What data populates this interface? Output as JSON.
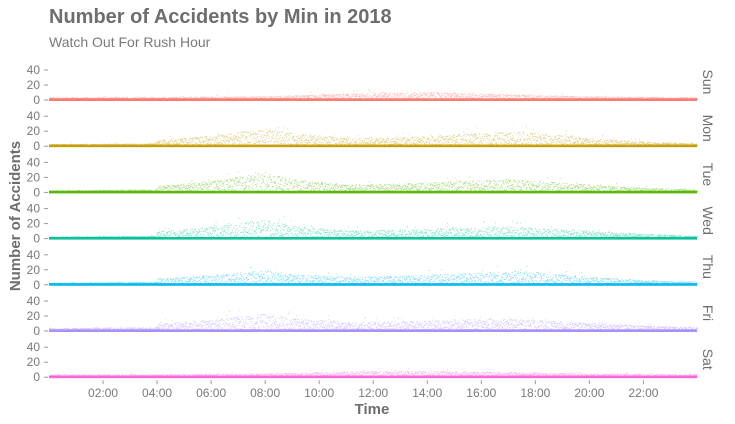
{
  "title": "Number of Accidents by Min in 2018",
  "subtitle": "Watch Out For Rush Hour",
  "chart_data": {
    "type": "scatter",
    "xlabel": "Time",
    "ylabel": "Number of Accidents",
    "xlim": [
      0,
      1439
    ],
    "ylim": [
      0,
      48
    ],
    "x_ticks": [
      {
        "minute": 120,
        "label": "02:00"
      },
      {
        "minute": 240,
        "label": "04:00"
      },
      {
        "minute": 360,
        "label": "06:00"
      },
      {
        "minute": 480,
        "label": "08:00"
      },
      {
        "minute": 600,
        "label": "10:00"
      },
      {
        "minute": 720,
        "label": "12:00"
      },
      {
        "minute": 840,
        "label": "14:00"
      },
      {
        "minute": 960,
        "label": "16:00"
      },
      {
        "minute": 1080,
        "label": "18:00"
      },
      {
        "minute": 1200,
        "label": "20:00"
      },
      {
        "minute": 1320,
        "label": "22:00"
      }
    ],
    "y_ticks": [
      0,
      20,
      40
    ],
    "grid": false,
    "legend": "none",
    "panels": [
      {
        "name": "Sun",
        "color": "#F8766D",
        "profile": [
          [
            0,
            3
          ],
          [
            240,
            3
          ],
          [
            480,
            4
          ],
          [
            720,
            8
          ],
          [
            840,
            9
          ],
          [
            960,
            7
          ],
          [
            1200,
            4
          ],
          [
            1439,
            3
          ]
        ]
      },
      {
        "name": "Mon",
        "color": "#C49A00",
        "profile": [
          [
            0,
            2
          ],
          [
            236,
            3
          ],
          [
            240,
            7
          ],
          [
            360,
            12
          ],
          [
            480,
            20
          ],
          [
            540,
            15
          ],
          [
            660,
            9
          ],
          [
            780,
            10
          ],
          [
            960,
            15
          ],
          [
            1050,
            17
          ],
          [
            1200,
            9
          ],
          [
            1320,
            5
          ],
          [
            1439,
            3
          ]
        ]
      },
      {
        "name": "Tue",
        "color": "#53B400",
        "profile": [
          [
            0,
            2
          ],
          [
            236,
            3
          ],
          [
            240,
            7
          ],
          [
            360,
            13
          ],
          [
            480,
            23
          ],
          [
            540,
            15
          ],
          [
            660,
            9
          ],
          [
            780,
            10
          ],
          [
            960,
            14
          ],
          [
            1020,
            15
          ],
          [
            1200,
            9
          ],
          [
            1320,
            5
          ],
          [
            1439,
            3
          ]
        ]
      },
      {
        "name": "Wed",
        "color": "#00C094",
        "profile": [
          [
            0,
            2
          ],
          [
            236,
            3
          ],
          [
            240,
            8
          ],
          [
            360,
            13
          ],
          [
            480,
            22
          ],
          [
            540,
            15
          ],
          [
            660,
            9
          ],
          [
            780,
            10
          ],
          [
            960,
            13
          ],
          [
            1020,
            14
          ],
          [
            1200,
            9
          ],
          [
            1320,
            5
          ],
          [
            1439,
            3
          ]
        ]
      },
      {
        "name": "Thu",
        "color": "#00B6EB",
        "profile": [
          [
            0,
            2
          ],
          [
            236,
            3
          ],
          [
            240,
            7
          ],
          [
            360,
            11
          ],
          [
            480,
            17
          ],
          [
            540,
            12
          ],
          [
            660,
            9
          ],
          [
            780,
            10
          ],
          [
            960,
            14
          ],
          [
            1050,
            16
          ],
          [
            1200,
            9
          ],
          [
            1320,
            5
          ],
          [
            1439,
            3
          ]
        ]
      },
      {
        "name": "Fri",
        "color": "#A58AFF",
        "profile": [
          [
            0,
            3
          ],
          [
            236,
            4
          ],
          [
            240,
            8
          ],
          [
            360,
            13
          ],
          [
            480,
            20
          ],
          [
            540,
            15
          ],
          [
            660,
            10
          ],
          [
            780,
            11
          ],
          [
            960,
            14
          ],
          [
            1020,
            14
          ],
          [
            1200,
            9
          ],
          [
            1320,
            6
          ],
          [
            1439,
            4
          ]
        ]
      },
      {
        "name": "Sat",
        "color": "#FB61D7",
        "profile": [
          [
            0,
            3
          ],
          [
            240,
            3
          ],
          [
            480,
            4
          ],
          [
            720,
            7
          ],
          [
            840,
            7
          ],
          [
            960,
            6
          ],
          [
            1200,
            4
          ],
          [
            1439,
            3
          ]
        ]
      }
    ]
  }
}
